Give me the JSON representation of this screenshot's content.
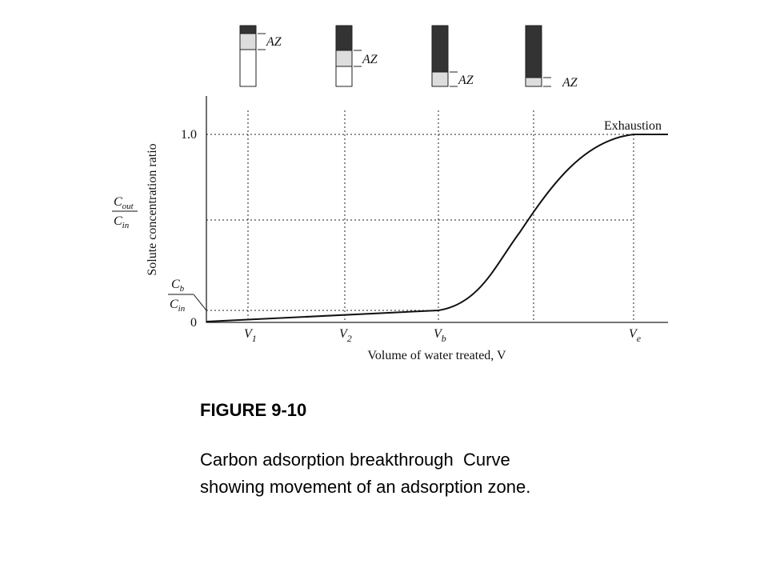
{
  "figure": {
    "columns": [
      {
        "label": "AZ"
      },
      {
        "label": "AZ"
      },
      {
        "label": "AZ"
      },
      {
        "label": "AZ"
      }
    ],
    "curve_label": "Exhaustion",
    "y_axis": {
      "title": "Solute concentration ratio",
      "ticks": [
        "1.0",
        "0"
      ],
      "ratio": {
        "num": {
          "main": "C",
          "sub": "out"
        },
        "den": {
          "main": "C",
          "sub": "in"
        }
      },
      "breakthrough_ratio": {
        "num": {
          "main": "C",
          "sub": "b"
        },
        "den": {
          "main": "C",
          "sub": "in"
        }
      }
    },
    "x_axis": {
      "title": "Volume of water treated, V",
      "ticks": [
        {
          "main": "V",
          "sub": "1"
        },
        {
          "main": "V",
          "sub": "2"
        },
        {
          "main": "V",
          "sub": "b"
        },
        {
          "main": "V",
          "sub": "e"
        }
      ]
    }
  },
  "caption": {
    "title": "FIGURE 9-10",
    "text": "Carbon adsorption breakthrough  Curve showing movement of an adsorption zone."
  }
}
